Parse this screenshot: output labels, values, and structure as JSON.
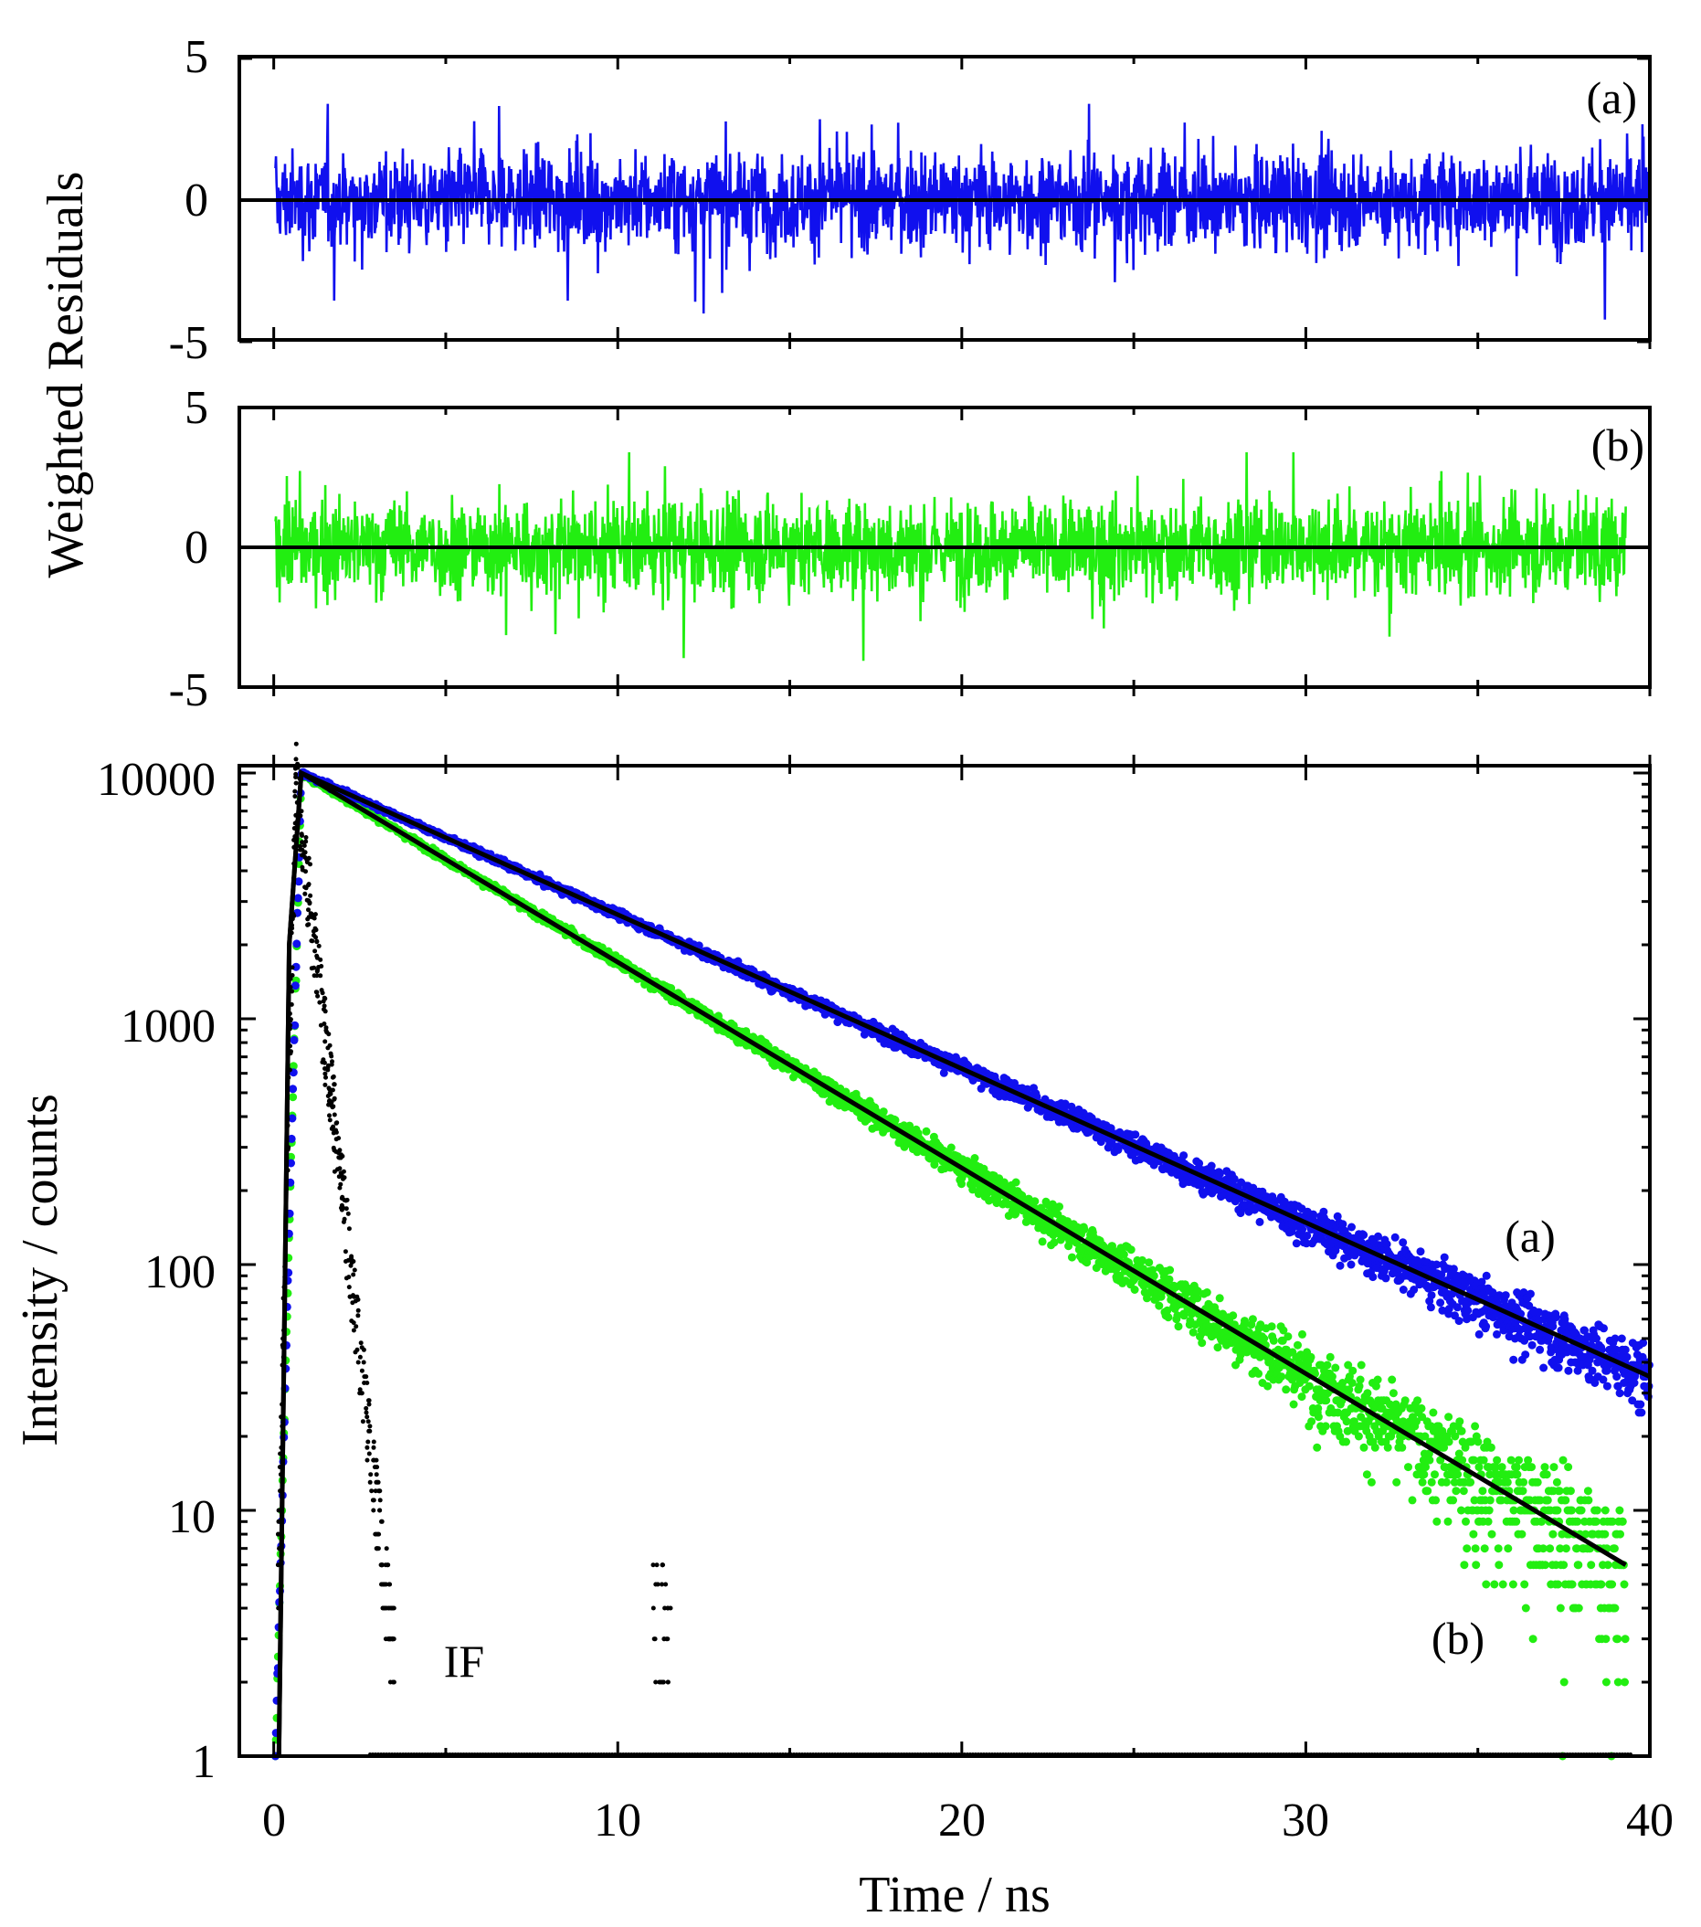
{
  "chart_data": [
    {
      "panel": "residuals-a",
      "type": "line",
      "tag": "(a)",
      "ylim": [
        -5,
        5
      ],
      "xlim": [
        -1,
        40
      ],
      "y_ticks": [
        5,
        0,
        -5
      ],
      "series_color": "#1010ee",
      "zero_line": true
    },
    {
      "panel": "residuals-b",
      "type": "line",
      "tag": "(b)",
      "ylim": [
        -5,
        5
      ],
      "xlim": [
        -1,
        40
      ],
      "y_ticks": [
        5,
        0,
        -5
      ],
      "series_color": "#22ee11",
      "zero_line": true
    },
    {
      "panel": "decay",
      "type": "scatter",
      "yscale": "log",
      "ylim": [
        1,
        12000
      ],
      "xlim": [
        -1,
        40
      ],
      "y_ticks": [
        "10000",
        "1000",
        "100",
        "10",
        "1"
      ],
      "x_ticks": [
        "0",
        "10",
        "20",
        "30",
        "40"
      ],
      "xlabel": "Time / ns",
      "ylabel": "Intensity / counts",
      "series": [
        {
          "name": "(a)",
          "color": "#1010ee",
          "peak_time_ns": 0.8,
          "peak_counts": 10000,
          "decay_time_ns": 7.0,
          "end_time_ns": 40,
          "end_counts": 35
        },
        {
          "name": "(b)",
          "color": "#22ee11",
          "peak_time_ns": 0.8,
          "peak_counts": 10000,
          "decay_time_ns": 5.6,
          "end_time_ns": 39.3,
          "end_counts": 6
        },
        {
          "name": "IF",
          "color": "#000000",
          "peak_time_ns": 0.6,
          "peak_counts": 10000
        }
      ],
      "fits": [
        {
          "series": "(a)",
          "color": "#000000",
          "points": [
            [
              0.8,
              10000
            ],
            [
              40,
              35
            ]
          ]
        },
        {
          "series": "(b)",
          "color": "#000000",
          "points": [
            [
              0.8,
              10000
            ],
            [
              39.3,
              6
            ]
          ]
        }
      ]
    }
  ],
  "labels": {
    "residuals_ylabel": "Weighted Residuals",
    "decay_ylabel": "Intensity / counts",
    "xlabel": "Time / ns",
    "tag_a_res": "(a)",
    "tag_b_res": "(b)",
    "tag_a_decay": "(a)",
    "tag_b_decay": "(b)",
    "tag_if": "IF",
    "res_tick_5": "5",
    "res_tick_0": "0",
    "res_tick_m5": "-5"
  }
}
